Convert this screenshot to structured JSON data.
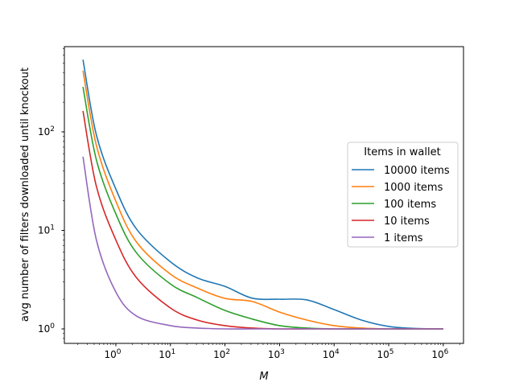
{
  "chart_data": {
    "type": "line",
    "xlabel": "M",
    "ylabel": "avg number of filters downloaded until knockout",
    "xscale": "log",
    "yscale": "log",
    "xlim": [
      0.114,
      2350000
    ],
    "ylim": [
      0.713,
      733
    ],
    "xticks": [
      {
        "v": 1,
        "e": "0"
      },
      {
        "v": 10,
        "e": "1"
      },
      {
        "v": 100,
        "e": "2"
      },
      {
        "v": 1000,
        "e": "3"
      },
      {
        "v": 10000,
        "e": "4"
      },
      {
        "v": 100000,
        "e": "5"
      },
      {
        "v": 1000000,
        "e": "6"
      }
    ],
    "yticks": [
      {
        "v": 1,
        "e": "0"
      },
      {
        "v": 10,
        "e": "1"
      },
      {
        "v": 100,
        "e": "2"
      }
    ],
    "tick_base": "10",
    "grid": false,
    "legend": {
      "title": "Items in wallet",
      "placement": "center-right"
    },
    "x": [
      0.25,
      0.44,
      1,
      2.4,
      10,
      31,
      100,
      316,
      1000,
      3162,
      10000,
      31623,
      100000,
      316228,
      1000000
    ],
    "series": [
      {
        "name": "10000 items",
        "color": "#1f77b4",
        "values": [
          540,
          93,
          26.3,
          10.3,
          4.8,
          3.3,
          2.7,
          2.05,
          2.0,
          1.97,
          1.57,
          1.23,
          1.06,
          1.01,
          1.0
        ]
      },
      {
        "name": "1000 items",
        "color": "#ff7f0e",
        "values": [
          417,
          73,
          19.8,
          7.6,
          3.6,
          2.6,
          2.04,
          1.9,
          1.48,
          1.23,
          1.08,
          1.02,
          1.0,
          1.0,
          1.0
        ]
      },
      {
        "name": "100 items",
        "color": "#2ca02c",
        "values": [
          286,
          52,
          14.7,
          5.9,
          2.86,
          2.08,
          1.54,
          1.26,
          1.08,
          1.02,
          1.0,
          1.0,
          1.0,
          1.0,
          1.0
        ]
      },
      {
        "name": "10 items",
        "color": "#d62728",
        "values": [
          163,
          28,
          8.0,
          3.3,
          1.63,
          1.23,
          1.08,
          1.02,
          1.0,
          1.0,
          1.0,
          1.0,
          1.0,
          1.0,
          1.0
        ]
      },
      {
        "name": "1 items",
        "color": "#9467bd",
        "values": [
          56,
          8.0,
          2.37,
          1.35,
          1.08,
          1.02,
          1.0,
          1.0,
          1.0,
          1.0,
          1.0,
          1.0,
          1.0,
          1.0,
          1.0
        ]
      }
    ]
  }
}
